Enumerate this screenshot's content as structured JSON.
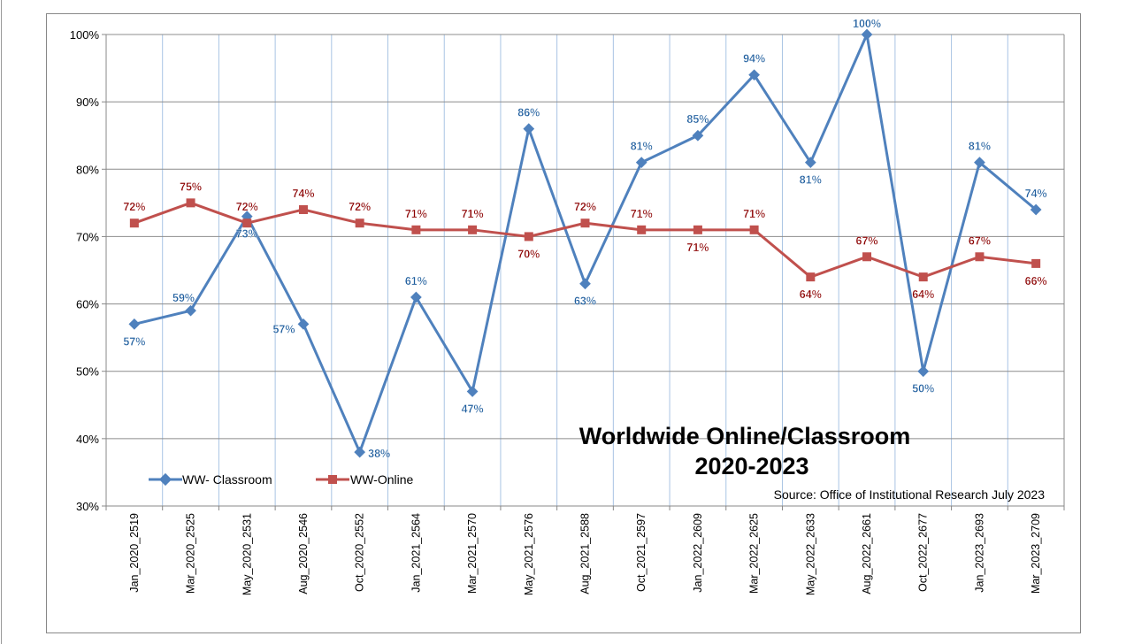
{
  "chart_data": {
    "type": "line",
    "title": "Worldwide Online/Classroom",
    "subtitle": "2020-2023",
    "source": "Source: Office of Institutional Research July 2023",
    "xlabel": "",
    "ylabel": "",
    "ylim": [
      30,
      100
    ],
    "yticks": [
      "30%",
      "40%",
      "50%",
      "60%",
      "70%",
      "80%",
      "90%",
      "100%"
    ],
    "grid": true,
    "legend_placement": "bottom-left",
    "categories": [
      "Jan_2020_2519",
      "Mar_2020_2525",
      "May_2020_2531",
      "Aug_2020_2546",
      "Oct_2020_2552",
      "Jan_2021_2564",
      "Mar_2021_2570",
      "May_2021_2576",
      "Aug_2021_2588",
      "Oct_2021_2597",
      "Jan_2022_2609",
      "Mar_2022_2625",
      "May_2022_2633",
      "Aug_2022_2661",
      "Oct_2022_2677",
      "Jan_2023_2693",
      "Mar_2023_2709"
    ],
    "series": [
      {
        "name": "WW- Classroom",
        "color": "#4F81BD",
        "label_color": "#1F5E9E",
        "marker": "diamond",
        "values": [
          57,
          59,
          73,
          57,
          38,
          61,
          47,
          86,
          63,
          81,
          85,
          94,
          81,
          100,
          50,
          81,
          74
        ]
      },
      {
        "name": "WW-Online",
        "color": "#C0504D",
        "label_color": "#8B0000",
        "marker": "square",
        "values": [
          72,
          75,
          72,
          74,
          72,
          71,
          71,
          70,
          72,
          71,
          71,
          71,
          64,
          67,
          64,
          67,
          66
        ]
      }
    ]
  }
}
